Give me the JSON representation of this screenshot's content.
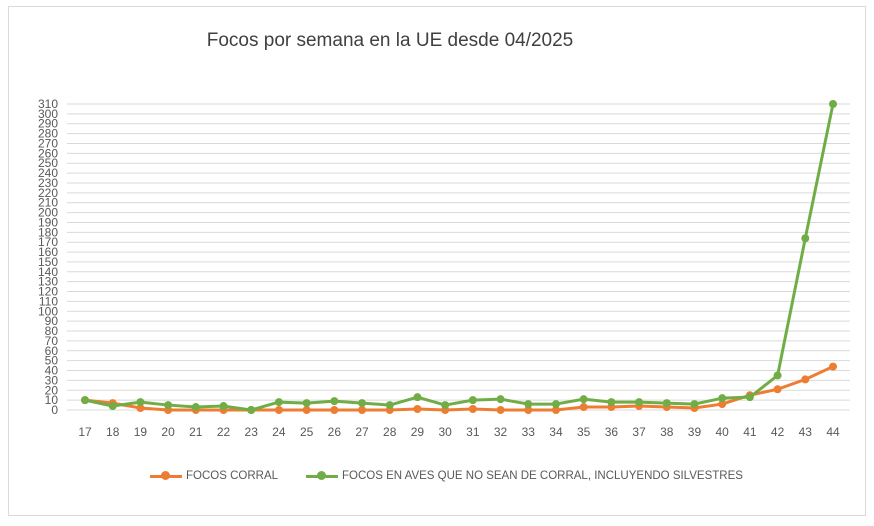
{
  "chart_data": {
    "type": "line",
    "title": "Focos por semana en la UE desde 04/2025",
    "xlabel": "",
    "ylabel": "",
    "x": [
      17,
      18,
      19,
      20,
      21,
      22,
      23,
      24,
      25,
      26,
      27,
      28,
      29,
      30,
      31,
      32,
      33,
      34,
      35,
      36,
      37,
      38,
      39,
      40,
      41,
      42,
      43,
      44
    ],
    "ylim": [
      0,
      310
    ],
    "ytick_step": 10,
    "grid": true,
    "legend_position": "bottom",
    "series": [
      {
        "name": "FOCOS CORRAL",
        "color": "#ed7d31",
        "values": [
          10,
          7,
          2,
          0,
          0,
          0,
          0,
          0,
          0,
          0,
          0,
          0,
          1,
          0,
          1,
          0,
          0,
          0,
          3,
          3,
          4,
          3,
          2,
          6,
          15,
          21,
          31,
          44
        ]
      },
      {
        "name": "FOCOS EN AVES QUE NO SEAN DE CORRAL, INCLUYENDO SILVESTRES",
        "color": "#70ad47",
        "values": [
          10,
          4,
          8,
          5,
          3,
          4,
          0,
          8,
          7,
          9,
          7,
          5,
          13,
          5,
          10,
          11,
          6,
          6,
          11,
          8,
          8,
          7,
          6,
          12,
          13,
          35,
          174,
          310
        ]
      }
    ]
  }
}
